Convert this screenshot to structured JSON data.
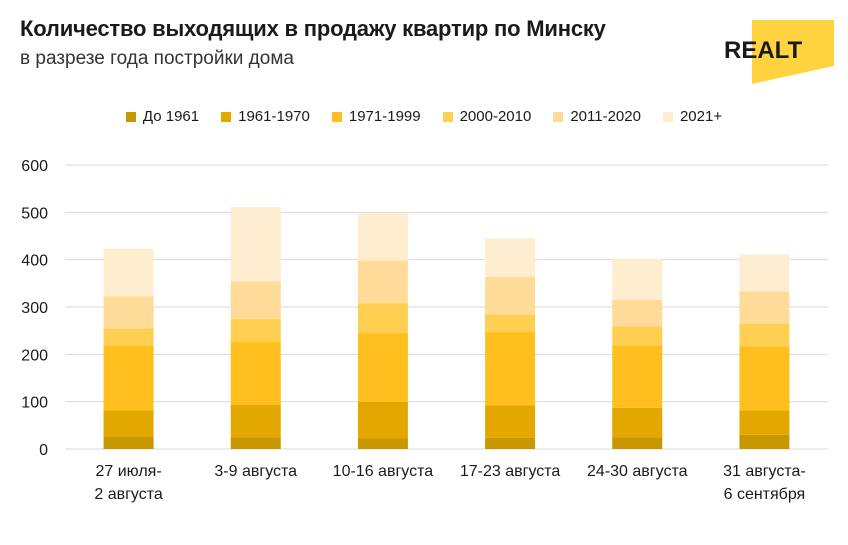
{
  "header": {
    "title": "Количество выходящих в продажу квартир по Минску",
    "subtitle": "в разрезе года постройки дома",
    "logo_text": "REALT"
  },
  "colors": {
    "logo_yellow": "#FFD240",
    "gridline": "#D9D9D9",
    "axis_text": "#1A1A1A"
  },
  "chart_data": {
    "type": "bar",
    "stacked": true,
    "title": "Количество выходящих в продажу квартир по Минску",
    "subtitle": "в разрезе года постройки дома",
    "xlabel": "",
    "ylabel": "",
    "ylim": [
      0,
      600
    ],
    "yticks": [
      0,
      100,
      200,
      300,
      400,
      500,
      600
    ],
    "grid": true,
    "legend_position": "top",
    "categories": [
      [
        "27 июля-",
        "2 августа"
      ],
      [
        "3-9 августа"
      ],
      [
        "10-16 августа"
      ],
      [
        "17-23 августа"
      ],
      [
        "24-30 августа"
      ],
      [
        "31 августа-",
        "6 сентября"
      ]
    ],
    "series": [
      {
        "name": "До 1961",
        "color": "#C99700",
        "values": [
          27,
          25,
          23,
          24,
          25,
          30
        ]
      },
      {
        "name": "1961-1970",
        "color": "#E3A800",
        "values": [
          55,
          68,
          77,
          68,
          62,
          52
        ]
      },
      {
        "name": "1971-1999",
        "color": "#FFC01F",
        "values": [
          137,
          133,
          145,
          155,
          132,
          135
        ]
      },
      {
        "name": "2000-2010",
        "color": "#FFCF52",
        "values": [
          36,
          49,
          63,
          37,
          40,
          48
        ]
      },
      {
        "name": "2011-2020",
        "color": "#FFDB9A",
        "values": [
          68,
          79,
          90,
          80,
          56,
          68
        ]
      },
      {
        "name": "2021+",
        "color": "#FFEDCF",
        "values": [
          100,
          157,
          100,
          81,
          87,
          78
        ]
      }
    ]
  }
}
